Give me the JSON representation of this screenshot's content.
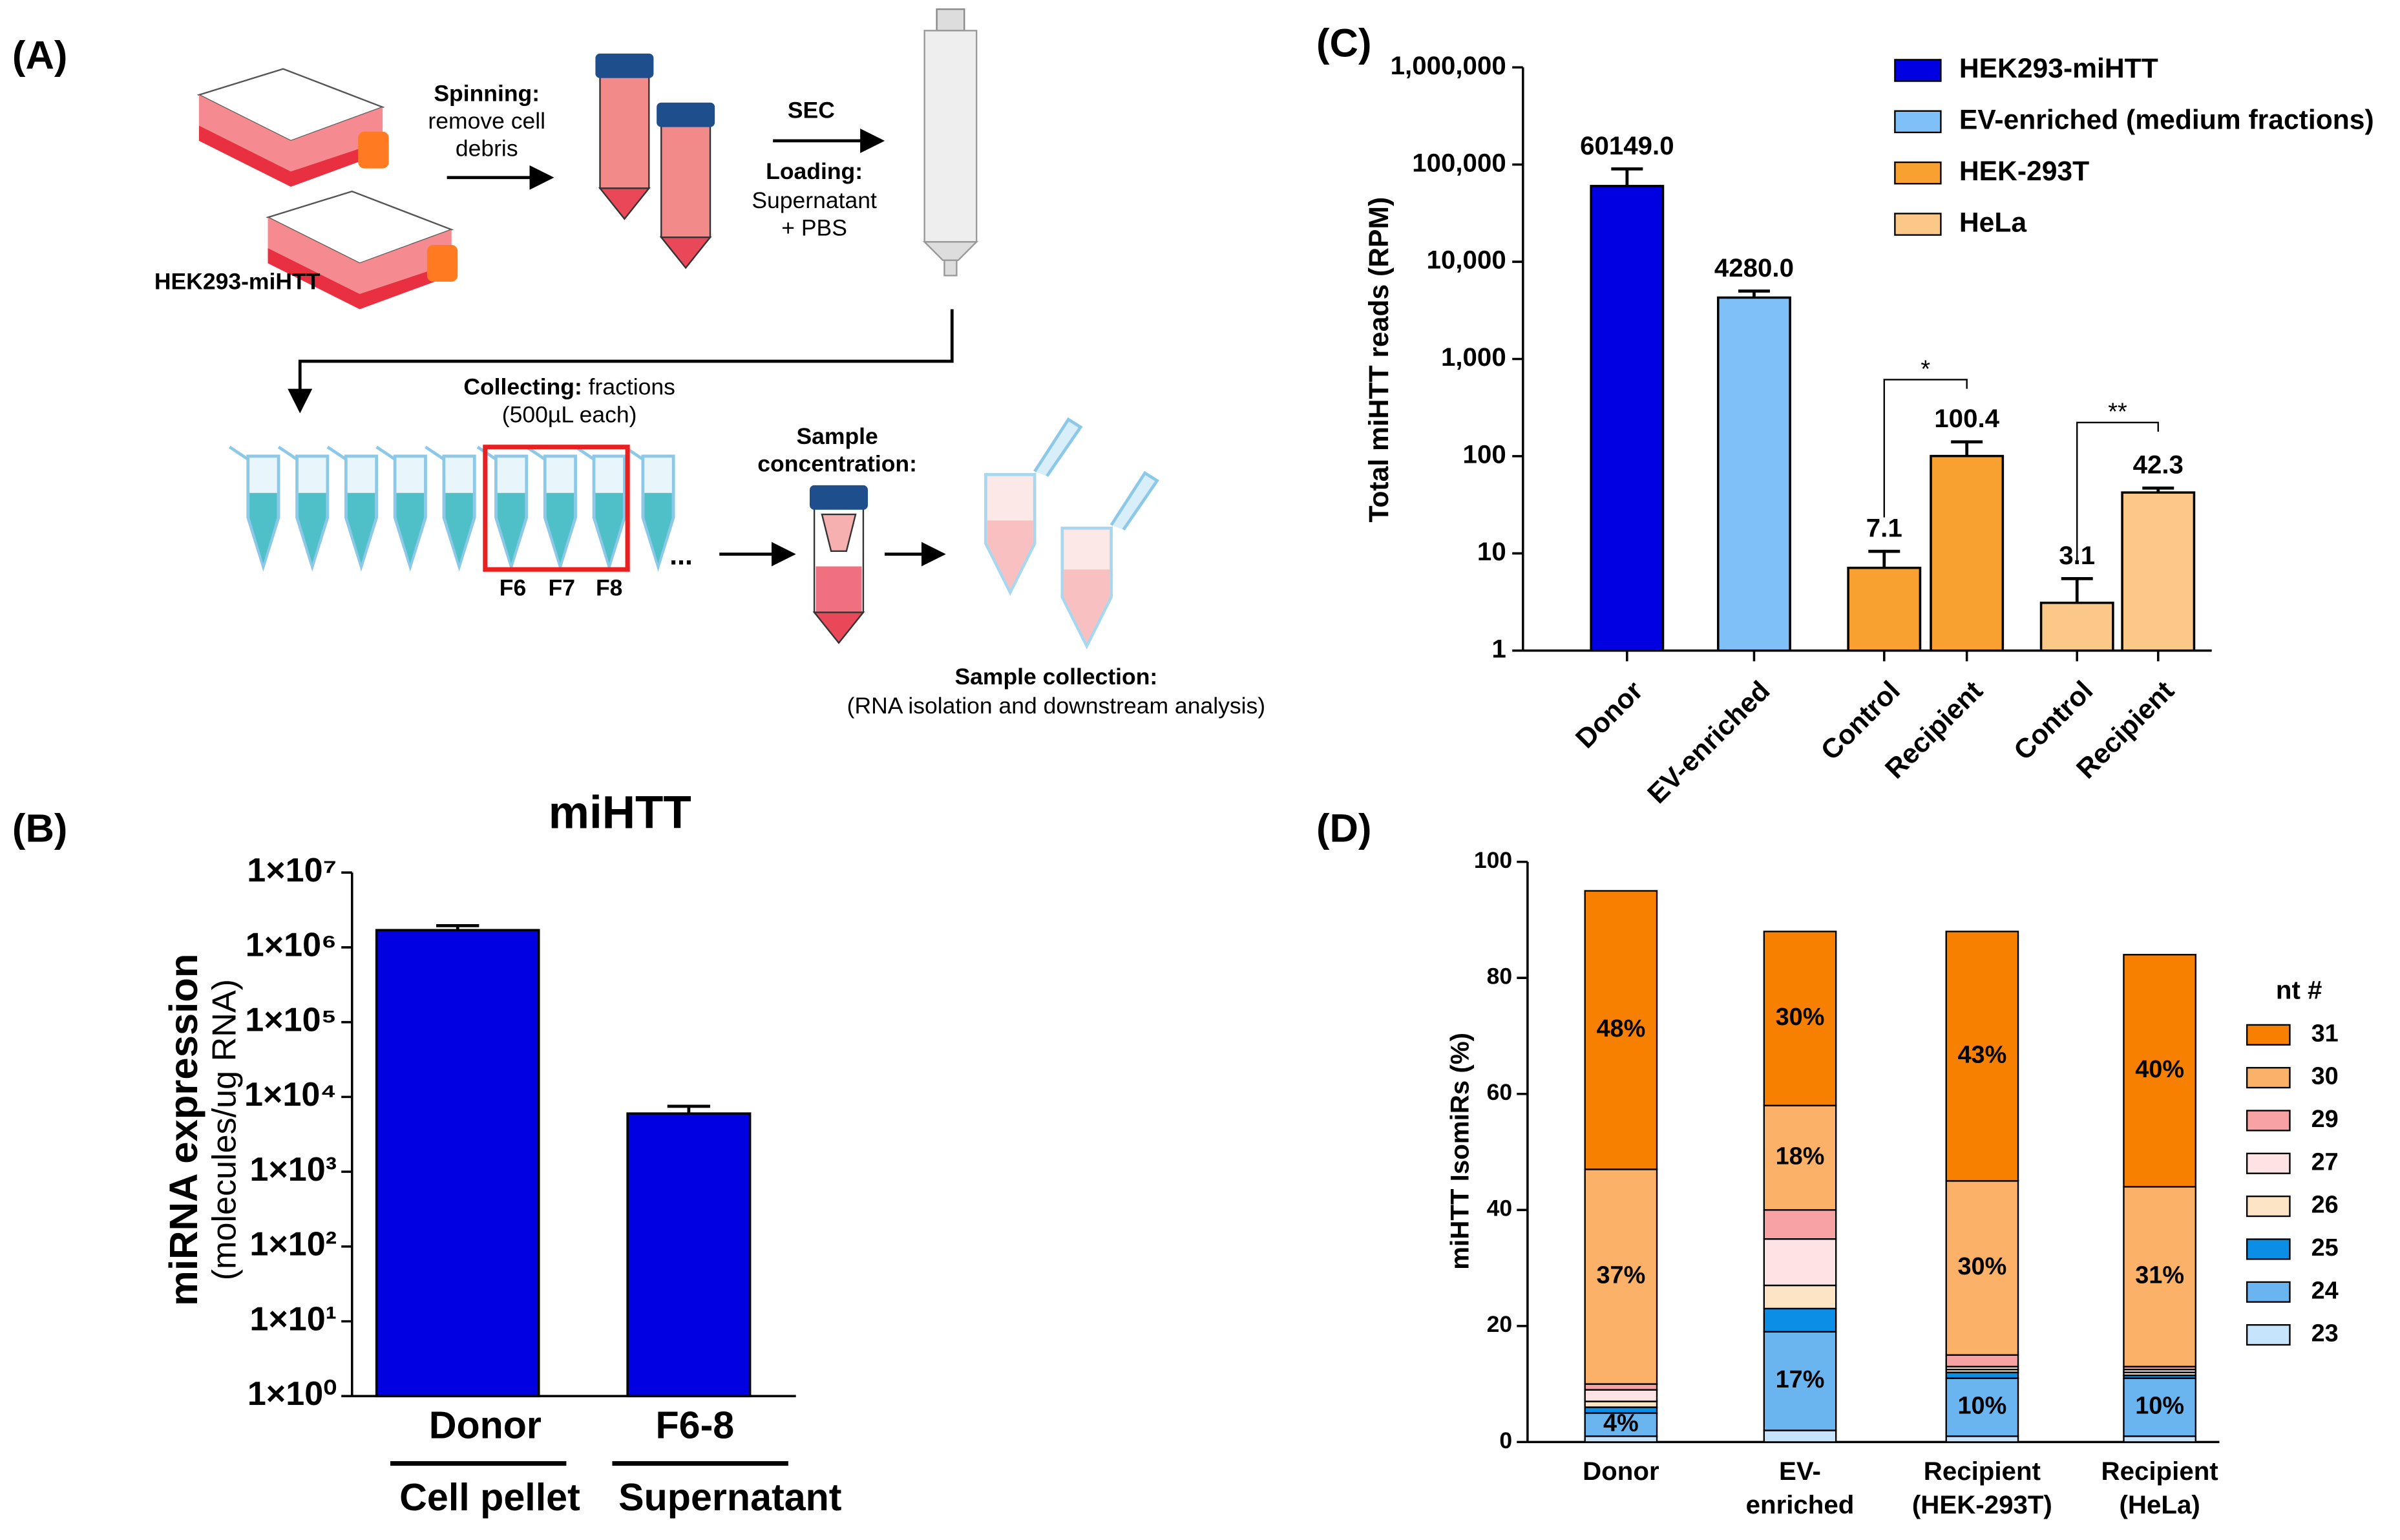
{
  "panel_labels": [
    "(A)",
    "(B)",
    "(C)",
    "(D)"
  ],
  "diagram": {
    "spinning": [
      "Spinning:",
      "remove cell",
      "debris"
    ],
    "sec": "SEC",
    "loading": [
      "Loading:",
      "Supernatant",
      "+ PBS"
    ],
    "cell_line": "HEK293-miHTT",
    "collecting": [
      "Collecting:",
      "fractions",
      "(500µL each)"
    ],
    "fractions": [
      "F6",
      "F7",
      "F8"
    ],
    "ellipsis": "...",
    "concentration": [
      "Sample",
      "concentration:"
    ],
    "collection": [
      "Sample collection:",
      "(RNA isolation and downstream analysis)"
    ]
  },
  "chart_data": [
    {
      "type": "bar",
      "title": "miHTT",
      "ylabel": "miRNA expression",
      "ylabel_sub": "(molecules/ug RNA)",
      "log_scale": true,
      "color": "#0000e0",
      "categories": [
        "Donor",
        "F6-8"
      ],
      "groups": [
        "Cell pellet",
        "Supernatant"
      ],
      "values": [
        1700000,
        6000
      ],
      "errors": [
        250000,
        1500
      ],
      "ylim": [
        1,
        10000000
      ],
      "yticks": [
        {
          "value": 1,
          "label": "1×10⁰"
        },
        {
          "value": 10,
          "label": "1×10¹"
        },
        {
          "value": 100,
          "label": "1×10²"
        },
        {
          "value": 1000,
          "label": "1×10³"
        },
        {
          "value": 10000,
          "label": "1×10⁴"
        },
        {
          "value": 100000,
          "label": "1×10⁵"
        },
        {
          "value": 1000000,
          "label": "1×10⁶"
        },
        {
          "value": 10000000,
          "label": "1×10⁷"
        }
      ]
    },
    {
      "type": "bar",
      "ylabel": "Total miHTT reads (RPM)",
      "log_scale": true,
      "categories": [
        "Donor",
        "EV-enriched",
        "Control",
        "Recipient",
        "Control",
        "Recipient"
      ],
      "series": [
        {
          "name": "HEK293-miHTT",
          "color": "#0000e0",
          "values": [
            60149.0,
            null,
            null,
            null,
            null,
            null
          ],
          "value_labels": [
            "60149.0",
            null,
            null,
            null,
            null,
            null
          ],
          "errors": [
            30000,
            null,
            null,
            null,
            null,
            null
          ]
        },
        {
          "name": "EV-enriched (medium fractions)",
          "color": "#80c0f8",
          "values": [
            null,
            4280.0,
            null,
            null,
            null,
            null
          ],
          "value_labels": [
            null,
            "4280.0",
            null,
            null,
            null,
            null
          ],
          "errors": [
            null,
            720,
            null,
            null,
            null,
            null
          ]
        },
        {
          "name": "HEK-293T",
          "color": "#f8a030",
          "values": [
            null,
            null,
            7.1,
            100.4,
            null,
            null
          ],
          "value_labels": [
            null,
            null,
            "7.1",
            "100.4",
            null,
            null
          ],
          "errors": [
            null,
            null,
            3.4,
            40,
            null,
            null
          ]
        },
        {
          "name": "HeLa",
          "color": "#fcc888",
          "values": [
            null,
            null,
            null,
            null,
            3.1,
            42.3
          ],
          "value_labels": [
            null,
            null,
            null,
            null,
            "3.1",
            "42.3"
          ],
          "errors": [
            null,
            null,
            null,
            null,
            2.4,
            4.7
          ]
        }
      ],
      "annotations": [
        "*",
        "**"
      ],
      "ylim": [
        1,
        1000000
      ],
      "yticks": [
        1,
        10,
        100,
        {
          "value": 1000,
          "label": "1,000"
        },
        {
          "value": 10000,
          "label": "10,000"
        },
        {
          "value": 100000,
          "label": "100,000"
        },
        {
          "value": 1000000,
          "label": "1,000,000"
        }
      ]
    },
    {
      "type": "stacked_bar",
      "ylabel": "miHTT IsomiRs (%)",
      "legend_title": "nt #",
      "categories": [
        "Donor",
        "EV-\nenriched",
        "Recipient\n(HEK-293T)",
        "Recipient\n(HeLa)"
      ],
      "series": [
        {
          "name": "31",
          "color": "#f88000",
          "values": [
            48,
            30,
            43,
            40
          ],
          "value_labels": [
            "48%",
            "30%",
            "43%",
            "40%"
          ]
        },
        {
          "name": "30",
          "color": "#fbb268",
          "values": [
            37,
            18,
            30,
            31
          ],
          "value_labels": [
            "37%",
            "18%",
            "30%",
            "31%"
          ]
        },
        {
          "name": "29",
          "color": "#f7a3a3",
          "values": [
            1,
            5,
            2,
            0.5
          ]
        },
        {
          "name": "27",
          "color": "#fde3e3",
          "values": [
            2,
            8,
            0.5,
            0.5
          ]
        },
        {
          "name": "26",
          "color": "#fde4c4",
          "values": [
            1,
            4,
            0.5,
            0.5
          ]
        },
        {
          "name": "25",
          "color": "#0b8fe6",
          "values": [
            1,
            4,
            1,
            0.5
          ]
        },
        {
          "name": "24",
          "color": "#6ab5f0",
          "values": [
            4,
            17,
            10,
            10
          ],
          "value_labels": [
            "4%",
            "17%",
            "10%",
            "10%"
          ]
        },
        {
          "name": "23",
          "color": "#c6e4fb",
          "values": [
            1,
            2,
            1,
            1
          ]
        }
      ],
      "ylim": [
        0,
        100
      ],
      "yticks": [
        0,
        20,
        40,
        60,
        80,
        100
      ]
    }
  ]
}
